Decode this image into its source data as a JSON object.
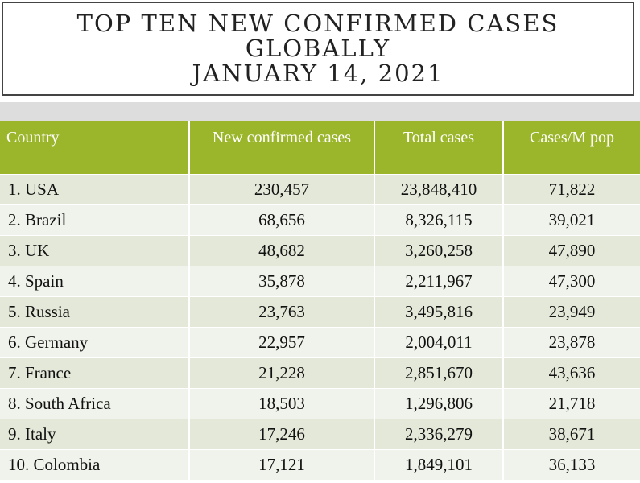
{
  "title": {
    "line1": "TOP TEN NEW CONFIRMED CASES",
    "line2": "GLOBALLY",
    "line3": "JANUARY 14, 2021"
  },
  "table": {
    "headers": {
      "country": "Country",
      "new_cases": "New confirmed cases",
      "total_cases": "Total cases",
      "cases_per_m": "Cases/M pop"
    },
    "rows": [
      {
        "country": "1. USA",
        "new_cases": "230,457",
        "total_cases": "23,848,410",
        "cases_per_m": "71,822"
      },
      {
        "country": "2. Brazil",
        "new_cases": "68,656",
        "total_cases": "8,326,115",
        "cases_per_m": "39,021"
      },
      {
        "country": "3. UK",
        "new_cases": "48,682",
        "total_cases": "3,260,258",
        "cases_per_m": "47,890"
      },
      {
        "country": "4. Spain",
        "new_cases": "35,878",
        "total_cases": "2,211,967",
        "cases_per_m": "47,300"
      },
      {
        "country": "5. Russia",
        "new_cases": "23,763",
        "total_cases": "3,495,816",
        "cases_per_m": "23,949"
      },
      {
        "country": "6. Germany",
        "new_cases": "22,957",
        "total_cases": "2,004,011",
        "cases_per_m": "23,878"
      },
      {
        "country": "7. France",
        "new_cases": "21,228",
        "total_cases": "2,851,670",
        "cases_per_m": "43,636"
      },
      {
        "country": "8. South Africa",
        "new_cases": "18,503",
        "total_cases": "1,296,806",
        "cases_per_m": "21,718"
      },
      {
        "country": "9. Italy",
        "new_cases": "17,246",
        "total_cases": "2,336,279",
        "cases_per_m": "38,671"
      },
      {
        "country": "10. Colombia",
        "new_cases": "17,121",
        "total_cases": "1,849,101",
        "cases_per_m": "36,133"
      }
    ]
  },
  "colors": {
    "header_bg": "#9bb62a",
    "row_odd_bg": "#e4e8d9",
    "row_even_bg": "#f0f3eb"
  }
}
